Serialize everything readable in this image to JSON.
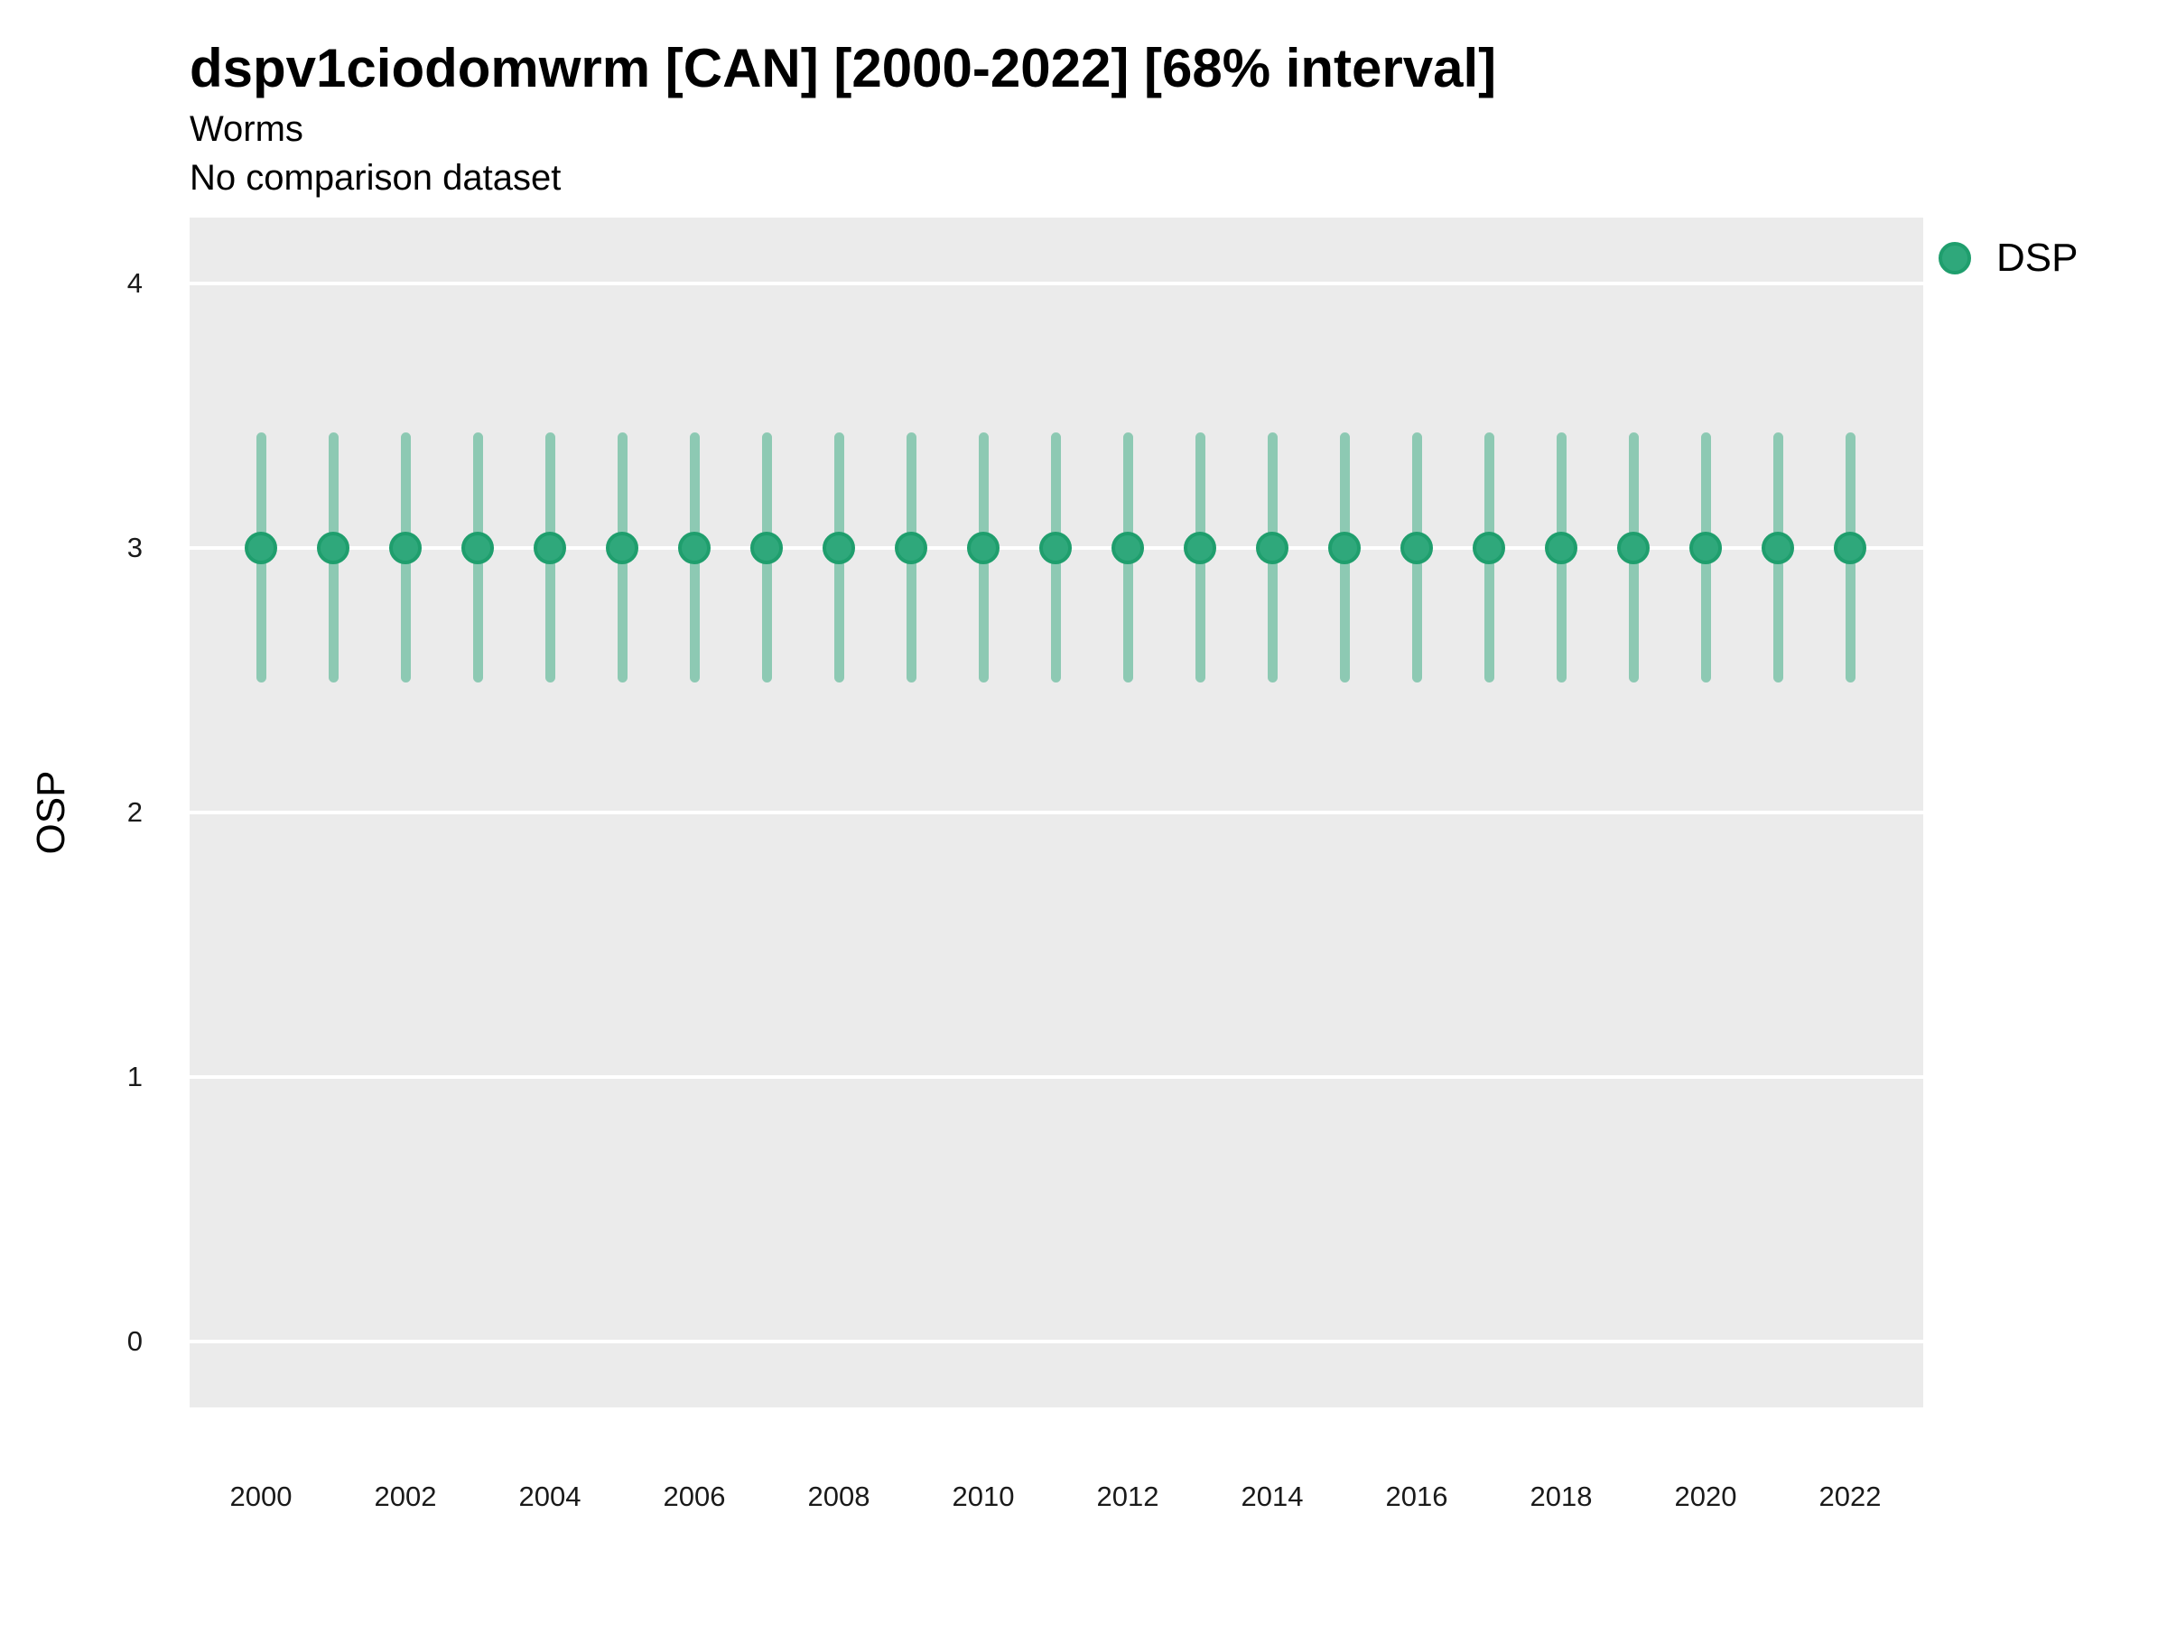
{
  "chart_data": {
    "type": "pointrange",
    "title": "dspv1ciodomwrm [CAN] [2000-2022] [68% interval]",
    "subtitle": "Worms",
    "note": "No comparison dataset",
    "xlabel": "",
    "ylabel": "OSP",
    "x": [
      2000,
      2001,
      2002,
      2003,
      2004,
      2005,
      2006,
      2007,
      2008,
      2009,
      2010,
      2011,
      2012,
      2013,
      2014,
      2015,
      2016,
      2017,
      2018,
      2019,
      2020,
      2021,
      2022
    ],
    "series": [
      {
        "name": "DSP",
        "values": [
          3,
          3,
          3,
          3,
          3,
          3,
          3,
          3,
          3,
          3,
          3,
          3,
          3,
          3,
          3,
          3,
          3,
          3,
          3,
          3,
          3,
          3,
          3
        ],
        "lower": [
          2.51,
          2.51,
          2.51,
          2.51,
          2.51,
          2.51,
          2.51,
          2.51,
          2.51,
          2.51,
          2.51,
          2.51,
          2.51,
          2.51,
          2.51,
          2.51,
          2.51,
          2.51,
          2.51,
          2.51,
          2.51,
          2.51,
          2.51
        ],
        "upper": [
          3.42,
          3.42,
          3.42,
          3.42,
          3.42,
          3.42,
          3.42,
          3.42,
          3.42,
          3.42,
          3.42,
          3.42,
          3.42,
          3.42,
          3.42,
          3.42,
          3.42,
          3.42,
          3.42,
          3.42,
          3.42,
          3.42,
          3.42
        ]
      }
    ],
    "x_tick_labels": [
      "2000",
      "2002",
      "2004",
      "2006",
      "2008",
      "2010",
      "2012",
      "2014",
      "2016",
      "2018",
      "2020",
      "2022"
    ],
    "x_tick_years": [
      2000,
      2002,
      2004,
      2006,
      2008,
      2010,
      2012,
      2014,
      2016,
      2018,
      2020,
      2022
    ],
    "y_ticks": [
      0,
      1,
      2,
      3,
      4
    ],
    "ylim": [
      -0.25,
      4.25
    ],
    "xlim": [
      1999.0125,
      2023.0125
    ],
    "grid": {
      "major_horizontal": true,
      "minor": false
    },
    "legend": {
      "position": "right",
      "entries": [
        {
          "label": "DSP"
        }
      ]
    },
    "colors": {
      "point_fill": "#2fa87b",
      "point_border": "#1f9e6d",
      "errorbar": "rgba(47,168,123,0.5)",
      "panel_bg": "#ebebeb",
      "gridline": "#ffffff"
    }
  }
}
